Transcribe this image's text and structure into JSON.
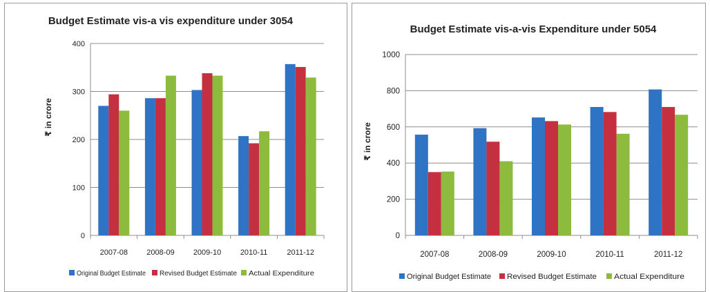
{
  "chart_data": [
    {
      "type": "bar",
      "title": "Budget Estimate vis-a vis expenditure under 3054",
      "ylabel": "₹ in crore",
      "xlabel": "",
      "ylim": [
        0,
        400
      ],
      "yticks": [
        0,
        100,
        200,
        300,
        400
      ],
      "grid": true,
      "legend": "bottom",
      "categories": [
        "2007-08",
        "2008-09",
        "2009-10",
        "2010-11",
        "2011-12"
      ],
      "series": [
        {
          "name": "Original Budget Estimate",
          "color": "#2f73c4",
          "values": [
            270,
            286,
            303,
            207,
            357
          ]
        },
        {
          "name": "Revised Budget Estimate",
          "color": "#c4303f",
          "values": [
            294,
            286,
            338,
            192,
            351
          ]
        },
        {
          "name": "Actual Expenditure",
          "color": "#8dbb3e",
          "values": [
            260,
            333,
            333,
            217,
            329
          ]
        }
      ]
    },
    {
      "type": "bar",
      "title": "Budget Estimate vis-a-vis Expenditure under 5054",
      "ylabel": "₹ in crore",
      "xlabel": "",
      "ylim": [
        0,
        1000
      ],
      "yticks": [
        0,
        200,
        400,
        600,
        800,
        1000
      ],
      "grid": true,
      "legend": "bottom",
      "categories": [
        "2007-08",
        "2008-09",
        "2009-10",
        "2010-11",
        "2011-12"
      ],
      "series": [
        {
          "name": "Original Budget Estimate",
          "color": "#2f73c4",
          "values": [
            557,
            593,
            652,
            710,
            807
          ]
        },
        {
          "name": "Revised Budget Estimate",
          "color": "#c4303f",
          "values": [
            350,
            518,
            632,
            682,
            710
          ]
        },
        {
          "name": "Actual Expenditure",
          "color": "#8dbb3e",
          "values": [
            353,
            410,
            613,
            562,
            667
          ]
        }
      ]
    }
  ]
}
